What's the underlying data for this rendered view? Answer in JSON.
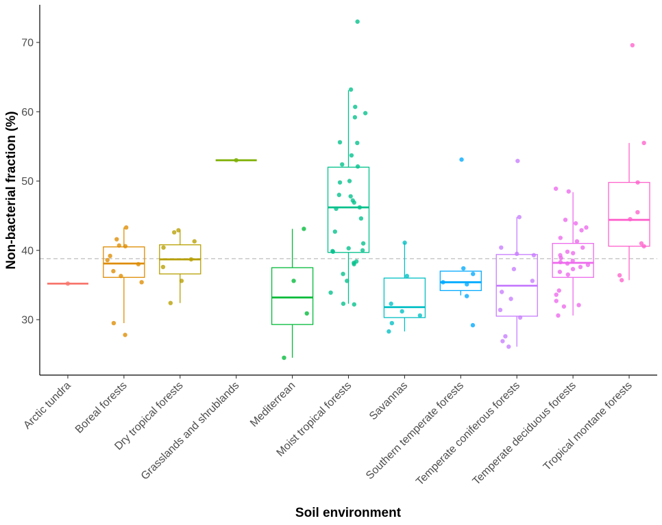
{
  "chart_data": {
    "type": "box",
    "xlabel": "Soil environment",
    "ylabel": "Non-bacterial fraction (%)",
    "ylim": [
      22,
      75
    ],
    "yticks": [
      30,
      40,
      50,
      60,
      70
    ],
    "reference_line": 38.8,
    "grid": false,
    "categories": [
      "Arctic tundra",
      "Boreal forests",
      "Dry tropical forests",
      "Grasslands and shrublands",
      "Mediterrean",
      "Moist tropical forests",
      "Savannas",
      "Southern temperate forests",
      "Temperate coniferous forests",
      "Temperate deciduous forests",
      "Tropical montane forests"
    ],
    "series": [
      {
        "category": "Arctic tundra",
        "color": "#F8766D",
        "box": {
          "min": 35.2,
          "q1": 35.2,
          "median": 35.2,
          "q3": 35.2,
          "max": 35.2
        },
        "points": [
          35.2
        ]
      },
      {
        "category": "Boreal forests",
        "color": "#DE8C00",
        "box": {
          "min": 29.5,
          "q1": 36.1,
          "median": 38.1,
          "q3": 40.5,
          "max": 43.3
        },
        "points": [
          43.3,
          40.7,
          41.6,
          40.6,
          39.2,
          38.6,
          38.0,
          37.0,
          36.3,
          35.4,
          29.5,
          27.8
        ]
      },
      {
        "category": "Dry tropical forests",
        "color": "#B79F00",
        "box": {
          "min": 32.4,
          "q1": 36.6,
          "median": 38.7,
          "q3": 40.8,
          "max": 42.9
        },
        "points": [
          42.9,
          42.6,
          41.3,
          40.4,
          38.7,
          37.6,
          35.6,
          32.4
        ]
      },
      {
        "category": "Grasslands and shrublands",
        "color": "#7CAE00",
        "box": {
          "min": 53.0,
          "q1": 53.0,
          "median": 53.0,
          "q3": 53.0,
          "max": 53.0
        },
        "points": [
          53.0
        ]
      },
      {
        "category": "Mediterrean",
        "color": "#00BA38",
        "box": {
          "min": 24.5,
          "q1": 29.3,
          "median": 33.2,
          "q3": 37.5,
          "max": 43.1
        },
        "points": [
          43.1,
          35.6,
          30.9,
          24.5
        ]
      },
      {
        "category": "Moist tropical forests",
        "color": "#00C08B",
        "box": {
          "min": 32.3,
          "q1": 39.7,
          "median": 46.2,
          "q3": 52.0,
          "max": 63.1
        },
        "points": [
          73.0,
          63.2,
          60.7,
          59.8,
          59.2,
          55.6,
          55.5,
          53.7,
          52.4,
          52.1,
          50.0,
          49.8,
          48.0,
          47.8,
          47.2,
          46.9,
          46.2,
          46.0,
          44.6,
          42.7,
          41.0,
          40.3,
          40.0,
          39.9,
          39.8,
          38.4,
          38.2,
          38.0,
          36.6,
          35.6,
          33.9,
          32.3,
          32.2
        ]
      },
      {
        "category": "Savannas",
        "color": "#00BFC4",
        "box": {
          "min": 28.3,
          "q1": 30.3,
          "median": 31.8,
          "q3": 36.0,
          "max": 41.1
        },
        "points": [
          41.1,
          36.3,
          32.3,
          31.2,
          30.6,
          29.5,
          28.3
        ]
      },
      {
        "category": "Southern temperate forests",
        "color": "#00A9FF",
        "box": {
          "min": 33.5,
          "q1": 34.2,
          "median": 35.4,
          "q3": 37.0,
          "max": 37.0
        },
        "points": [
          53.1,
          37.4,
          36.6,
          35.4,
          35.1,
          33.4,
          29.2
        ]
      },
      {
        "category": "Temperate coniferous forests",
        "color": "#C77CFF",
        "box": {
          "min": 26.1,
          "q1": 30.5,
          "median": 34.9,
          "q3": 39.4,
          "max": 44.8
        },
        "points": [
          52.9,
          44.8,
          40.4,
          39.5,
          39.3,
          37.3,
          35.6,
          34.0,
          33.0,
          31.4,
          30.3,
          27.6,
          26.9,
          26.1
        ]
      },
      {
        "category": "Temperate deciduous forests",
        "color": "#ED68ED",
        "box": {
          "min": 30.6,
          "q1": 36.1,
          "median": 38.2,
          "q3": 41.0,
          "max": 48.4
        },
        "points": [
          48.9,
          48.5,
          44.4,
          43.9,
          43.3,
          42.9,
          41.8,
          41.3,
          40.4,
          39.8,
          39.6,
          39.3,
          38.9,
          38.5,
          38.3,
          38.1,
          37.9,
          37.6,
          37.3,
          36.9,
          36.5,
          34.2,
          33.6,
          32.7,
          32.1,
          31.9,
          30.6
        ]
      },
      {
        "category": "Tropical montane forests",
        "color": "#FF61CC",
        "box": {
          "min": 35.7,
          "q1": 40.6,
          "median": 44.4,
          "q3": 49.8,
          "max": 55.5
        },
        "points": [
          69.6,
          55.5,
          49.8,
          45.5,
          44.5,
          41.0,
          40.6,
          36.4,
          35.7
        ]
      }
    ]
  }
}
